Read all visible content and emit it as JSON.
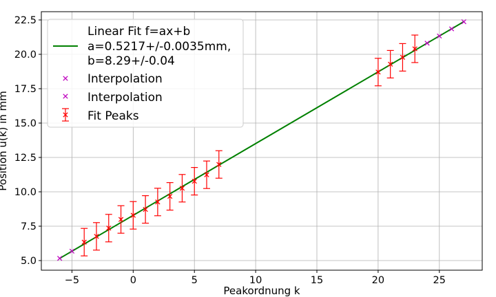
{
  "chart_data": {
    "type": "scatter",
    "xlabel": "Peakordnung k",
    "ylabel": "Position u(k) in mm",
    "xlim": [
      -7.5,
      28.5
    ],
    "ylim": [
      4.3,
      23.1
    ],
    "xticks": [
      -5,
      0,
      5,
      10,
      15,
      20,
      25
    ],
    "yticks": [
      5.0,
      7.5,
      10.0,
      12.5,
      15.0,
      17.5,
      20.0,
      22.5
    ],
    "ytick_labels": [
      "5.0",
      "7.5",
      "10.0",
      "12.5",
      "15.0",
      "17.5",
      "20.0",
      "22.5"
    ],
    "grid": true,
    "legend_position": "top-left",
    "fit": {
      "label_lines": [
        "Linear Fit f=ax+b",
        "a=0.5217+/-0.0035mm,",
        "b=8.29+/-0.04"
      ],
      "slope": 0.5217,
      "intercept": 8.29,
      "x_range": [
        -6,
        27
      ],
      "color": "#008000"
    },
    "interpolation_lower": {
      "name": "Interpolation",
      "color": "#bf00bf",
      "x": [
        -6,
        -5
      ],
      "y": [
        5.16,
        5.68
      ]
    },
    "interpolation_upper": {
      "name": "Interpolation",
      "color": "#bf00bf",
      "x": [
        24,
        25,
        26,
        27
      ],
      "y": [
        20.81,
        21.33,
        21.85,
        22.37
      ]
    },
    "fit_peaks": {
      "name": "Fit Peaks",
      "color": "#ff0000",
      "yerr": 1.0,
      "x": [
        -4,
        -3,
        -2,
        -1,
        0,
        1,
        2,
        3,
        4,
        5,
        6,
        7,
        20,
        21,
        22,
        23
      ],
      "y": [
        6.34,
        6.76,
        7.36,
        7.99,
        8.29,
        8.72,
        9.26,
        9.67,
        10.26,
        10.77,
        11.24,
        11.99,
        18.71,
        19.28,
        19.78,
        20.4
      ]
    }
  }
}
